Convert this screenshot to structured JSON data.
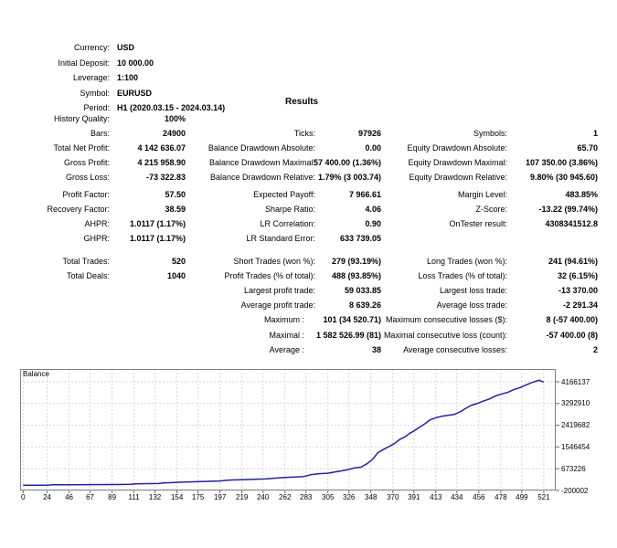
{
  "results_title": "Results",
  "header": {
    "rows": [
      {
        "label": "Currency:",
        "value": "USD"
      },
      {
        "label": "Initial Deposit:",
        "value": "10 000.00"
      },
      {
        "label": "Leverage:",
        "value": "1:100"
      },
      {
        "label": "Symbol:",
        "value": "EURUSD"
      },
      {
        "label": "Period:",
        "value": "H1 (2020.03.15 - 2024.03.14)"
      }
    ]
  },
  "stats": {
    "blocks": [
      {
        "rows": [
          [
            {
              "l": "History Quality:",
              "v": "100%"
            },
            {
              "l": "",
              "v": ""
            },
            {
              "l": "",
              "v": ""
            }
          ],
          [
            {
              "l": "Bars:",
              "v": "24900"
            },
            {
              "l": "Ticks:",
              "v": "97926"
            },
            {
              "l": "Symbols:",
              "v": "1"
            }
          ],
          [
            {
              "l": "Total Net Profit:",
              "v": "4 142 636.07"
            },
            {
              "l": "Balance Drawdown Absolute:",
              "v": "0.00"
            },
            {
              "l": "Equity Drawdown Absolute:",
              "v": "65.70"
            }
          ],
          [
            {
              "l": "Gross Profit:",
              "v": "4 215 958.90"
            },
            {
              "l": "Balance Drawdown Maximal:",
              "v": "57 400.00 (1.36%)"
            },
            {
              "l": "Equity Drawdown Maximal:",
              "v": "107 350.00 (3.86%)"
            }
          ],
          [
            {
              "l": "Gross Loss:",
              "v": "-73 322.83"
            },
            {
              "l": "Balance Drawdown Relative:",
              "v": "1.79% (3 003.74)"
            },
            {
              "l": "Equity Drawdown Relative:",
              "v": "9.80% (30 945.60)"
            }
          ]
        ]
      },
      {
        "rows": [
          [
            {
              "l": "Profit Factor:",
              "v": "57.50"
            },
            {
              "l": "Expected Payoff:",
              "v": "7 966.61"
            },
            {
              "l": "Margin Level:",
              "v": "483.85%"
            }
          ],
          [
            {
              "l": "Recovery Factor:",
              "v": "38.59"
            },
            {
              "l": "Sharpe Ratio:",
              "v": "4.06"
            },
            {
              "l": "Z-Score:",
              "v": "-13.22 (99.74%)"
            }
          ],
          [
            {
              "l": "AHPR:",
              "v": "1.0117 (1.17%)"
            },
            {
              "l": "LR Correlation:",
              "v": "0.90"
            },
            {
              "l": "OnTester result:",
              "v": "4308341512.8"
            }
          ],
          [
            {
              "l": "GHPR:",
              "v": "1.0117 (1.17%)"
            },
            {
              "l": "LR Standard Error:",
              "v": "633 739.05"
            },
            {
              "l": "",
              "v": ""
            }
          ]
        ]
      },
      {
        "rows": [
          [
            {
              "l": "Total Trades:",
              "v": "520"
            },
            {
              "l": "Short Trades (won %):",
              "v": "279 (93.19%)"
            },
            {
              "l": "Long Trades (won %):",
              "v": "241 (94.61%)"
            }
          ],
          [
            {
              "l": "Total Deals:",
              "v": "1040"
            },
            {
              "l": "Profit Trades (% of total):",
              "v": "488 (93.85%)"
            },
            {
              "l": "Loss Trades (% of total):",
              "v": "32 (6.15%)"
            }
          ],
          [
            {
              "l": "",
              "v": ""
            },
            {
              "l": "Largest profit trade:",
              "v": "59 033.85"
            },
            {
              "l": "Largest loss trade:",
              "v": "-13 370.00"
            }
          ],
          [
            {
              "l": "",
              "v": ""
            },
            {
              "l": "Average profit trade:",
              "v": "8 639.26"
            },
            {
              "l": "Average loss trade:",
              "v": "-2 291.34"
            }
          ],
          [
            {
              "l": "",
              "v": ""
            },
            {
              "l": "Maximum :",
              "v": "101 (34 520.71)"
            },
            {
              "l": "Maximum consecutive losses ($):",
              "v": "8 (-57 400.00)"
            }
          ],
          [
            {
              "l": "",
              "v": ""
            },
            {
              "l": "Maximal :",
              "v": "1 582 526.99 (81)"
            },
            {
              "l": "Maximal consecutive loss (count):",
              "v": "-57 400.00 (8)"
            }
          ],
          [
            {
              "l": "",
              "v": ""
            },
            {
              "l": "Average :",
              "v": "38"
            },
            {
              "l": "Average consecutive losses:",
              "v": "2"
            }
          ]
        ]
      }
    ]
  },
  "chart_data": {
    "type": "line",
    "title": "Balance",
    "line_color": "#2222a2",
    "grid_color": "#d6d6d6",
    "border_color": "#808080",
    "tick_color": "#666666",
    "x_ticks": [
      0,
      24,
      46,
      67,
      89,
      111,
      132,
      154,
      175,
      197,
      219,
      240,
      262,
      283,
      305,
      326,
      348,
      370,
      391,
      413,
      434,
      456,
      478,
      499,
      521
    ],
    "y_ticks": [
      4166137,
      3292910,
      2419682,
      1546454,
      673226,
      -200002
    ],
    "x_range": [
      -3,
      533
    ],
    "y_range": [
      -200002,
      4680000
    ],
    "series": [
      {
        "name": "Balance",
        "x": [
          0,
          24,
          30,
          46,
          67,
          89,
          108,
          112,
          126,
          136,
          139,
          154,
          170,
          186,
          197,
          205,
          219,
          232,
          243,
          251,
          259,
          267,
          275,
          281,
          288,
          296,
          305,
          312,
          319,
          326,
          332,
          338,
          344,
          350,
          355,
          361,
          367,
          372,
          377,
          382,
          387,
          391,
          396,
          401,
          407,
          413,
          419,
          425,
          431,
          437,
          443,
          449,
          455,
          461,
          467,
          473,
          479,
          485,
          491,
          497,
          503,
          508,
          513,
          517,
          519,
          521
        ],
        "y": [
          10000,
          13000,
          26000,
          30000,
          34000,
          39000,
          44000,
          68000,
          75000,
          80000,
          98000,
          125000,
          148000,
          168000,
          182000,
          215000,
          232000,
          248000,
          262000,
          292000,
          315000,
          332000,
          345000,
          360000,
          435000,
          475000,
          495000,
          545000,
          590000,
          645000,
          710000,
          735000,
          870000,
          1060000,
          1320000,
          1460000,
          1580000,
          1700000,
          1850000,
          1950000,
          2100000,
          2190000,
          2320000,
          2450000,
          2630000,
          2720000,
          2780000,
          2820000,
          2850000,
          2950000,
          3100000,
          3230000,
          3300000,
          3400000,
          3480000,
          3600000,
          3680000,
          3740000,
          3850000,
          3930000,
          4030000,
          4120000,
          4190000,
          4230000,
          4180000,
          4152636
        ]
      }
    ]
  }
}
